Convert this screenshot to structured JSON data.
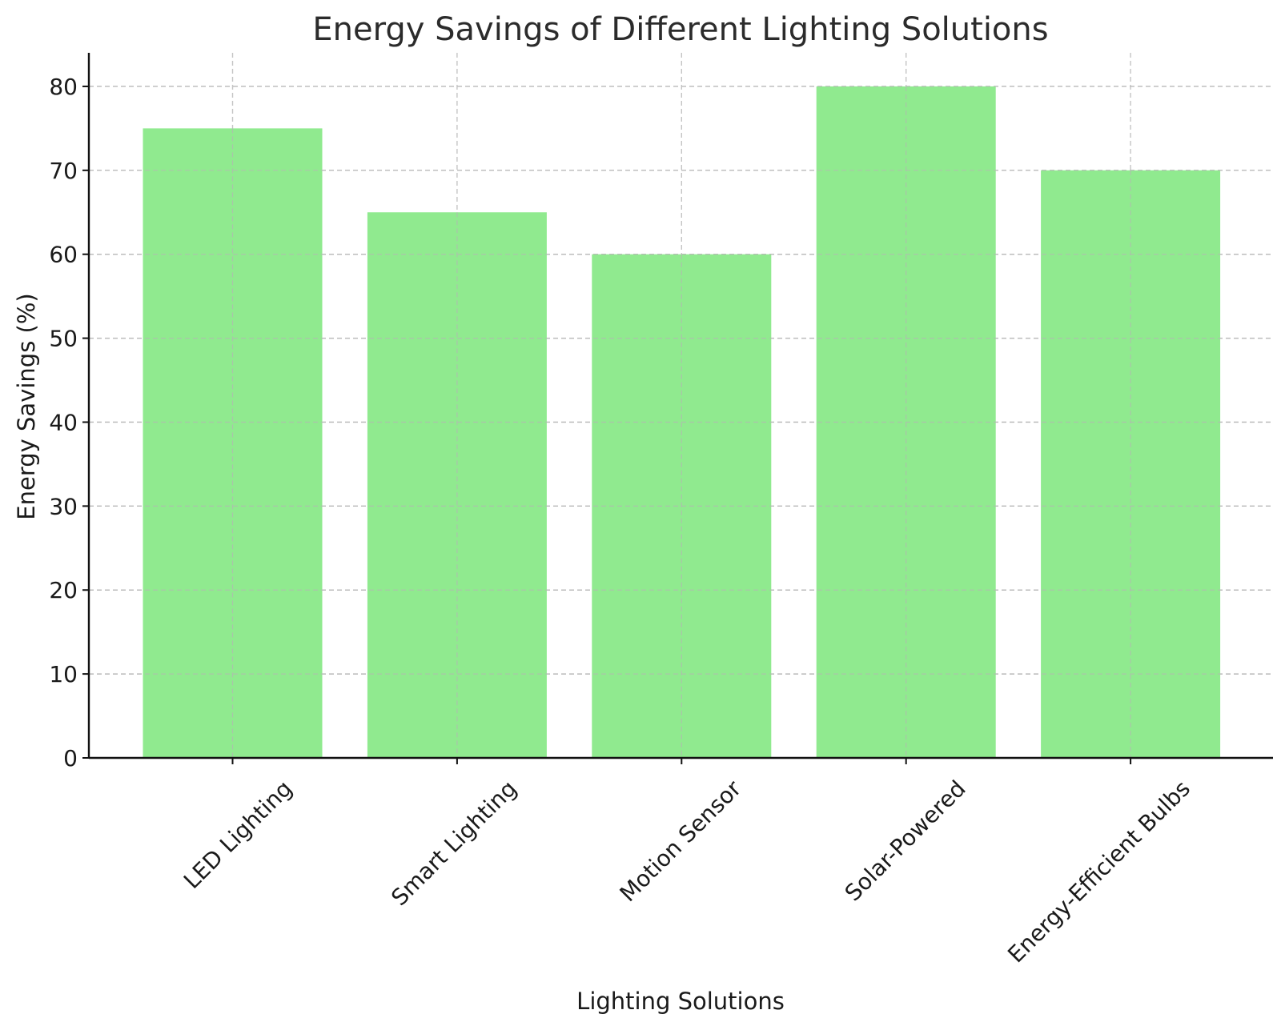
{
  "chart_data": {
    "type": "bar",
    "title": "Energy Savings of Different Lighting Solutions",
    "xlabel": "Lighting Solutions",
    "ylabel": "Energy Savings (%)",
    "categories": [
      "LED Lighting",
      "Smart Lighting",
      "Motion Sensor",
      "Solar-Powered",
      "Energy-Efficient Bulbs"
    ],
    "values": [
      75,
      65,
      60,
      80,
      70
    ],
    "ylim": [
      0,
      84
    ],
    "yticks": [
      0,
      10,
      20,
      30,
      40,
      50,
      60,
      70,
      80
    ],
    "grid": true,
    "bar_color": "#90ea8f",
    "x_tick_rotation_deg": 45
  }
}
